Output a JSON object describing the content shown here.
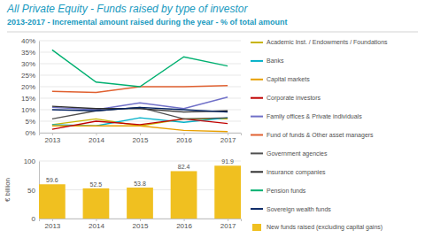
{
  "chart_data": [
    {
      "type": "line",
      "title": "All Private Equity - Funds raised by type of investor",
      "subtitle": "2013-2017 - Incremental amount raised during the year - % of total amount",
      "x": [
        2013,
        2014,
        2015,
        2016,
        2017
      ],
      "xlim": [
        2012.7,
        2017.3
      ],
      "xticks": [
        2013,
        2014,
        2015,
        2016,
        2017
      ],
      "series": [
        {
          "name": "Academic Inst. / Endowments / Foundations",
          "color": "#c8b400",
          "values": [
            3.5,
            6.0,
            3.0,
            6.0,
            6.0
          ]
        },
        {
          "name": "Banks",
          "color": "#00b0c8",
          "values": [
            3.5,
            3.0,
            6.5,
            4.5,
            6.5
          ]
        },
        {
          "name": "Capital markets",
          "color": "#e8a000",
          "values": [
            3.0,
            3.0,
            3.0,
            1.0,
            0.5
          ]
        },
        {
          "name": "Corporate investors",
          "color": "#c00000",
          "values": [
            1.5,
            5.0,
            3.5,
            6.0,
            4.0
          ]
        },
        {
          "name": "Family offices & Private individuals",
          "color": "#7070c8",
          "values": [
            11.0,
            10.0,
            13.0,
            10.5,
            15.5
          ]
        },
        {
          "name": "Fund of funds & Other asset managers",
          "color": "#e06030",
          "values": [
            18.0,
            17.5,
            20.0,
            20.0,
            20.5
          ]
        },
        {
          "name": "Government agencies",
          "color": "#505050",
          "values": [
            6.0,
            9.5,
            11.0,
            6.0,
            6.5
          ]
        },
        {
          "name": "Insurance companies",
          "color": "#303030",
          "values": [
            11.5,
            10.5,
            10.5,
            9.0,
            9.5
          ]
        },
        {
          "name": "Pension funds",
          "color": "#00b070",
          "values": [
            36.0,
            22.0,
            20.0,
            33.0,
            29.0
          ]
        },
        {
          "name": "Sovereign wealth funds",
          "color": "#002060",
          "values": [
            10.0,
            9.5,
            11.0,
            10.0,
            9.0
          ]
        }
      ],
      "ylim": [
        0,
        40
      ],
      "yticks": [
        {
          "value": 0,
          "label": "0%"
        },
        {
          "value": 5,
          "label": "5%"
        },
        {
          "value": 10,
          "label": "10%"
        },
        {
          "value": 15,
          "label": "15%"
        },
        {
          "value": 20,
          "label": "20%"
        },
        {
          "value": 25,
          "label": "25%"
        },
        {
          "value": 30,
          "label": "30%"
        },
        {
          "value": 35,
          "label": "35%"
        },
        {
          "value": 40,
          "label": "40%"
        }
      ],
      "grid": true,
      "legend": "right"
    },
    {
      "type": "bar",
      "x": [
        2013,
        2014,
        2015,
        2016,
        2017
      ],
      "xlim": [
        2012.7,
        2017.3
      ],
      "xticks": [
        2013,
        2014,
        2015,
        2016,
        2017
      ],
      "series": [
        {
          "name": "New funds raised (excluding capital gains)",
          "color": "#f0c020",
          "values": [
            59.6,
            52.5,
            53.8,
            82.4,
            91.9
          ]
        }
      ],
      "ylabel": "€ billion",
      "ylim": [
        0,
        100
      ],
      "yticks": [
        0,
        50,
        100
      ],
      "grid": true,
      "data_labels": true,
      "legend": "right"
    }
  ]
}
